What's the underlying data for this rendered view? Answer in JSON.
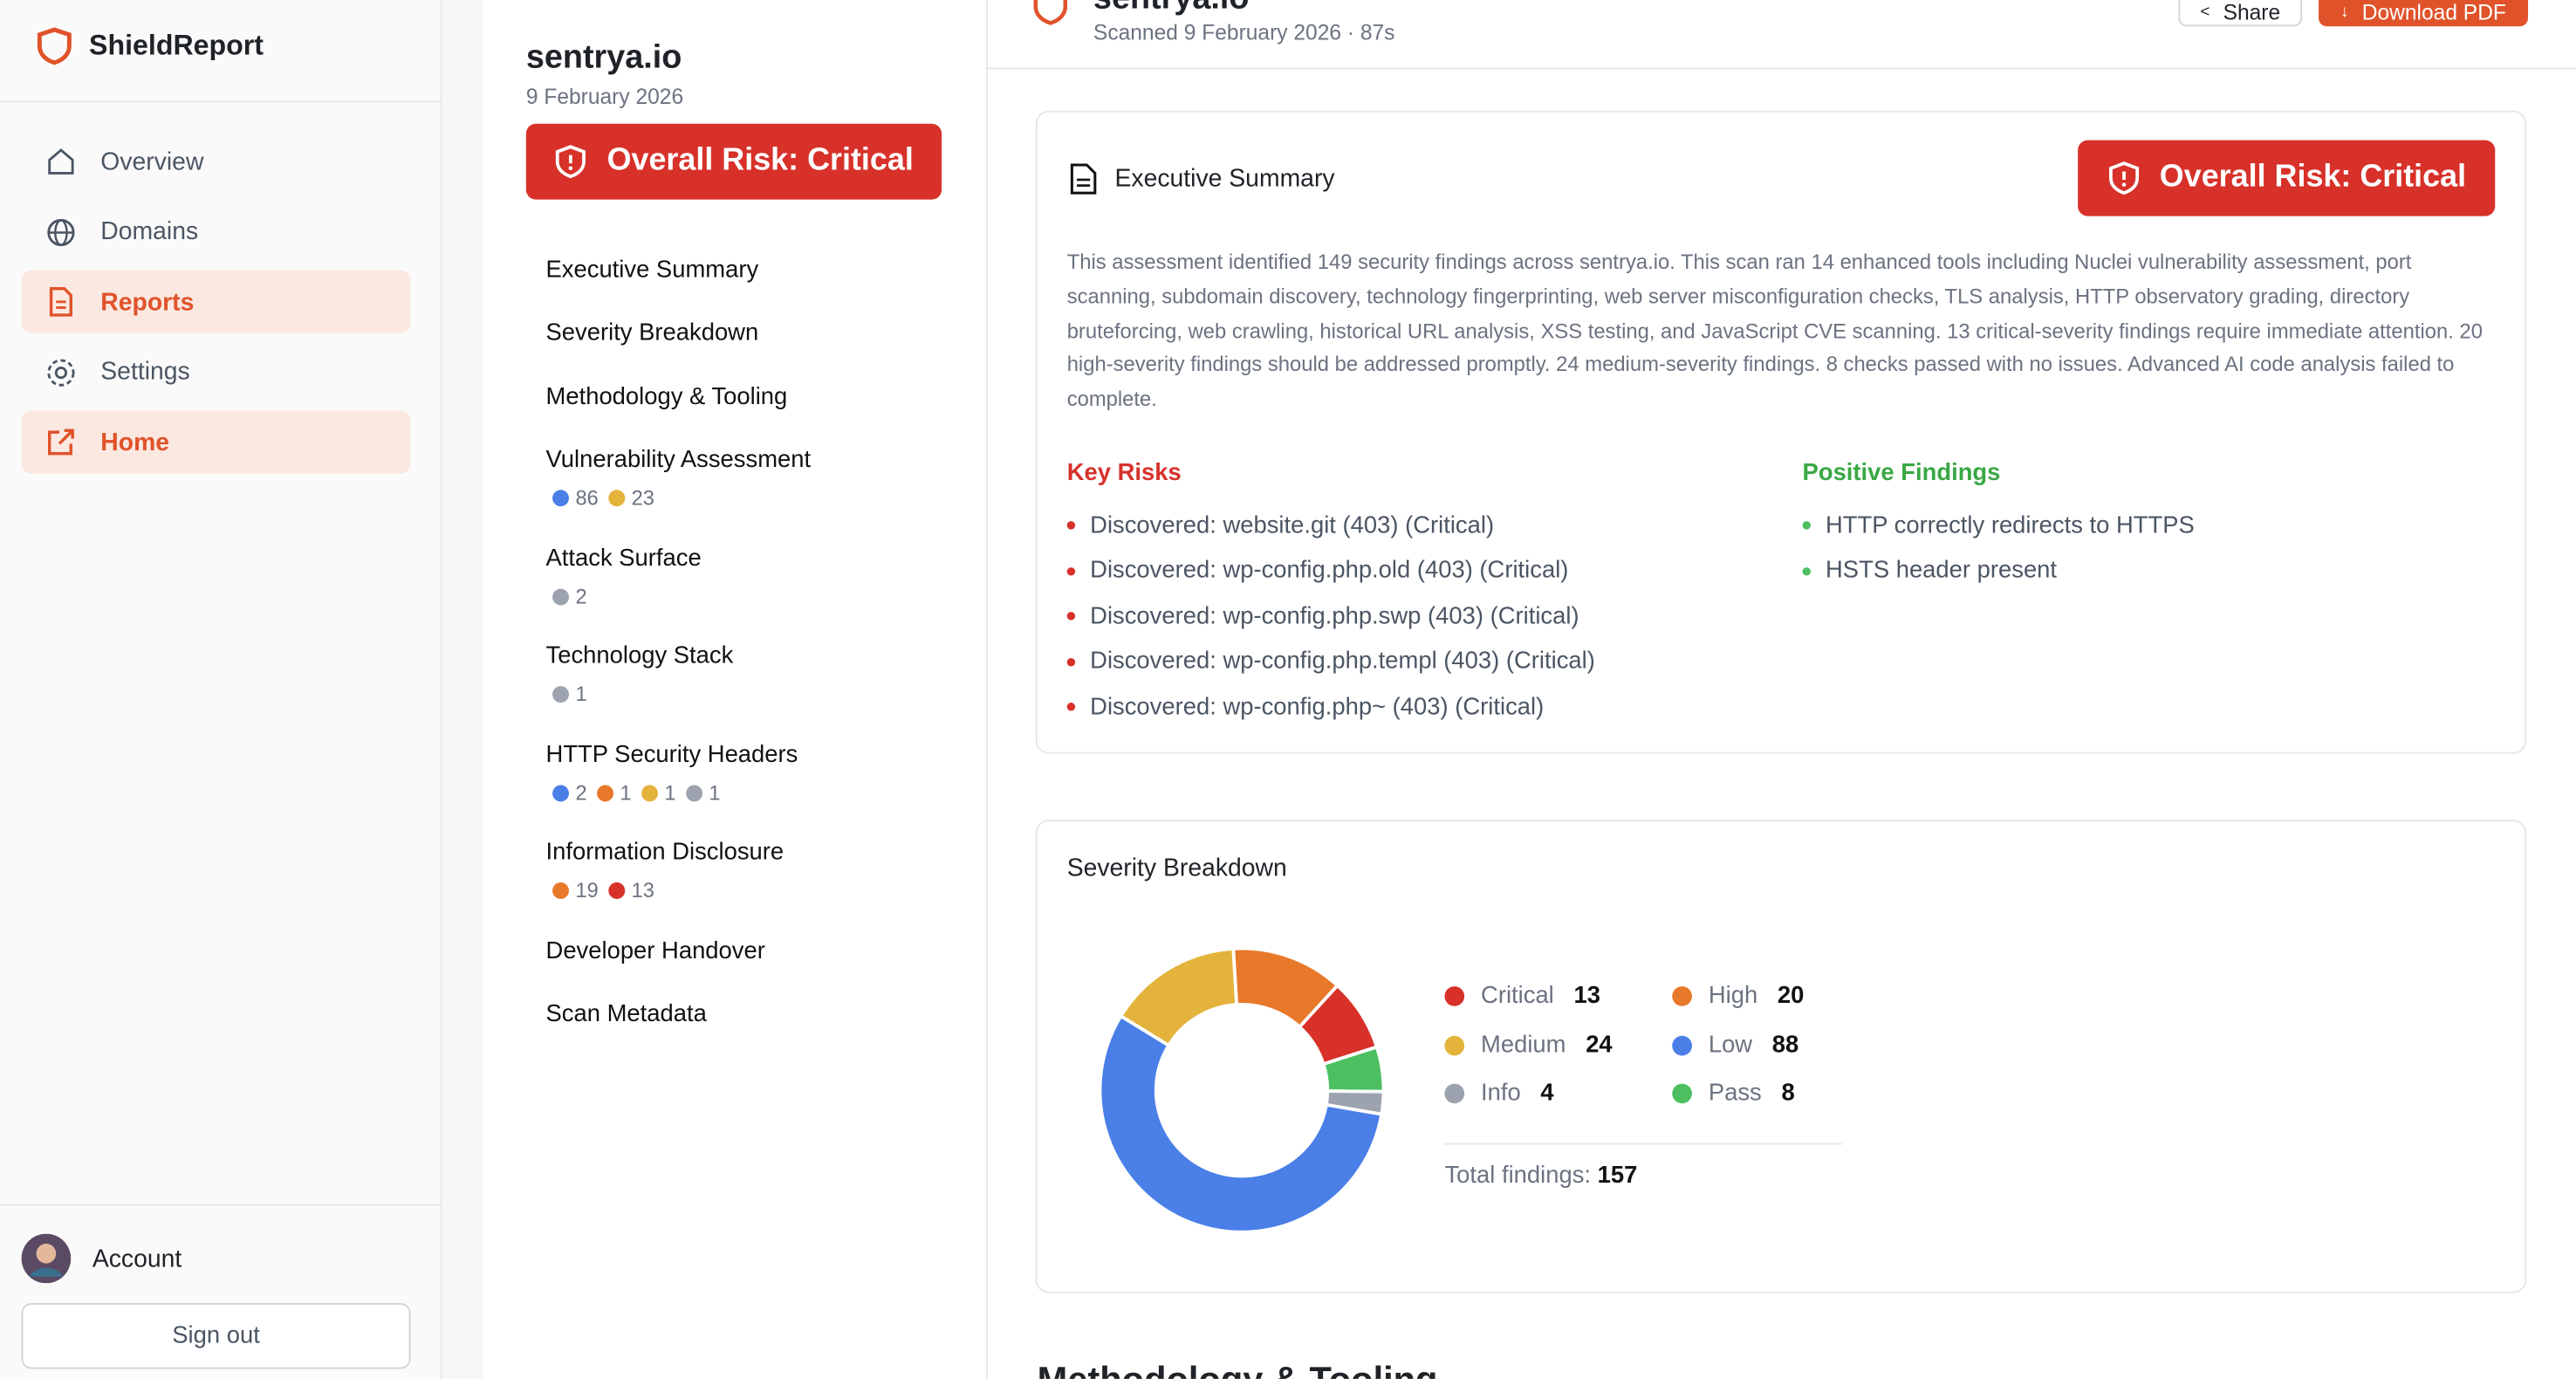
{
  "sidebar": {
    "brand": "ShieldReport",
    "nav": [
      "Overview",
      "Domains",
      "Reports",
      "Settings",
      "Home"
    ],
    "account": "Account",
    "sign_out": "Sign out"
  },
  "report_nav": {
    "domain": "sentrya.io",
    "date": "9 February 2026",
    "risk_badge": "Overall Risk: Critical",
    "sections": [
      {
        "label": "Executive Summary",
        "counts": []
      },
      {
        "label": "Severity Breakdown",
        "counts": []
      },
      {
        "label": "Methodology & Tooling",
        "counts": []
      },
      {
        "label": "Vulnerability Assessment",
        "counts": [
          {
            "value": 86,
            "color": "#4a7fe8"
          },
          {
            "value": 23,
            "color": "#e3b33b"
          }
        ]
      },
      {
        "label": "Attack Surface",
        "counts": [
          {
            "value": 2,
            "color": "#9ca3af"
          }
        ]
      },
      {
        "label": "Technology Stack",
        "counts": [
          {
            "value": 1,
            "color": "#9ca3af"
          }
        ]
      },
      {
        "label": "HTTP Security Headers",
        "counts": [
          {
            "value": 2,
            "color": "#4a7fe8"
          },
          {
            "value": 1,
            "color": "#e8782a"
          },
          {
            "value": 1,
            "color": "#e3b33b"
          },
          {
            "value": 1,
            "color": "#9ca3af"
          }
        ]
      },
      {
        "label": "Information Disclosure",
        "counts": [
          {
            "value": 19,
            "color": "#e8782a"
          },
          {
            "value": 13,
            "color": "#d7312a"
          }
        ]
      },
      {
        "label": "Developer Handover",
        "counts": []
      },
      {
        "label": "Scan Metadata",
        "counts": []
      }
    ]
  },
  "header": {
    "title": "sentrya.io",
    "subtitle": "Scanned 9 February 2026 · 87s",
    "share": "Share",
    "download": "Download PDF"
  },
  "executive_summary": {
    "title": "Executive Summary",
    "risk_badge": "Overall Risk: Critical",
    "text": "This assessment identified 149 security findings across sentrya.io. This scan ran 14 enhanced tools including Nuclei vulnerability assessment, port scanning, subdomain discovery, technology fingerprinting, web server misconfiguration checks, TLS analysis, HTTP observatory grading, directory bruteforcing, web crawling, historical URL analysis, XSS testing, and JavaScript CVE scanning. 13 critical-severity findings require immediate attention. 20 high-severity findings should be addressed promptly. 24 medium-severity findings. 8 checks passed with no issues. Advanced AI code analysis failed to complete.",
    "key_risks_title": "Key Risks",
    "key_risks": [
      "Discovered: website.git (403) (Critical)",
      "Discovered: wp-config.php.old (403) (Critical)",
      "Discovered: wp-config.php.swp (403) (Critical)",
      "Discovered: wp-config.php.templ (403) (Critical)",
      "Discovered: wp-config.php~ (403) (Critical)"
    ],
    "positive_title": "Positive Findings",
    "positive": [
      "HTTP correctly redirects to HTTPS",
      "HSTS header present"
    ]
  },
  "severity_breakdown": {
    "title": "Severity Breakdown",
    "items": [
      {
        "name": "Critical",
        "value": 13,
        "color": "#d7312a"
      },
      {
        "name": "High",
        "value": 20,
        "color": "#e8782a"
      },
      {
        "name": "Medium",
        "value": 24,
        "color": "#e3b33b"
      },
      {
        "name": "Low",
        "value": 88,
        "color": "#4a7fe8"
      },
      {
        "name": "Info",
        "value": 4,
        "color": "#9ca3af"
      },
      {
        "name": "Pass",
        "value": 8,
        "color": "#4cc061"
      }
    ],
    "total_label": "Total findings:",
    "total": 157
  },
  "next_section": "Methodology & Tooling"
}
